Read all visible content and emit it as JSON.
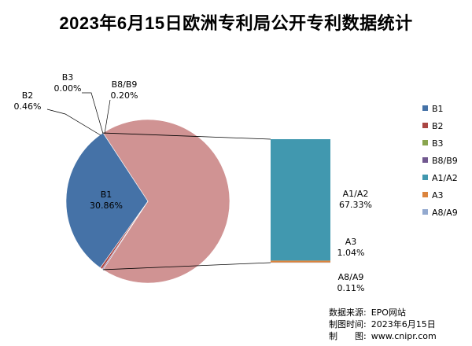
{
  "chart_data": {
    "type": "pie",
    "title": "2023年6月15日欧洲专利局公开专利数据统计",
    "slices": [
      {
        "name": "B1",
        "value": 30.86,
        "label": "30.86%",
        "color": "#4572A7"
      },
      {
        "name": "B2",
        "value": 0.46,
        "label": "0.46%",
        "color": "#AA4643"
      },
      {
        "name": "B3",
        "value": 0.0,
        "label": "0.00%",
        "color": "#89A54E"
      },
      {
        "name": "B8/B9",
        "value": 0.2,
        "label": "0.20%",
        "color": "#71588F"
      },
      {
        "name": "A1/A2",
        "value": 67.33,
        "label": "67.33%",
        "color": "#4198AF"
      },
      {
        "name": "A3",
        "value": 1.04,
        "label": "1.04%",
        "color": "#DB843D"
      },
      {
        "name": "A8/A9",
        "value": 0.11,
        "label": "0.11%",
        "color": "#93A9CF"
      }
    ],
    "pie_of_bar_group": [
      "A1/A2",
      "A3",
      "A8/A9"
    ],
    "other_slice_color": "#D09393",
    "legend_position": "right",
    "legend": [
      "B1",
      "B2",
      "B3",
      "B8/B9",
      "A1/A2",
      "A3",
      "A8/A9"
    ]
  },
  "footer": {
    "source_label": "数据来源:",
    "source_value": "EPO网站",
    "time_label": "制图时间:",
    "time_value": "2023年6月15日",
    "maker_label": "制　　图:",
    "maker_value": "www.cnipr.com"
  }
}
